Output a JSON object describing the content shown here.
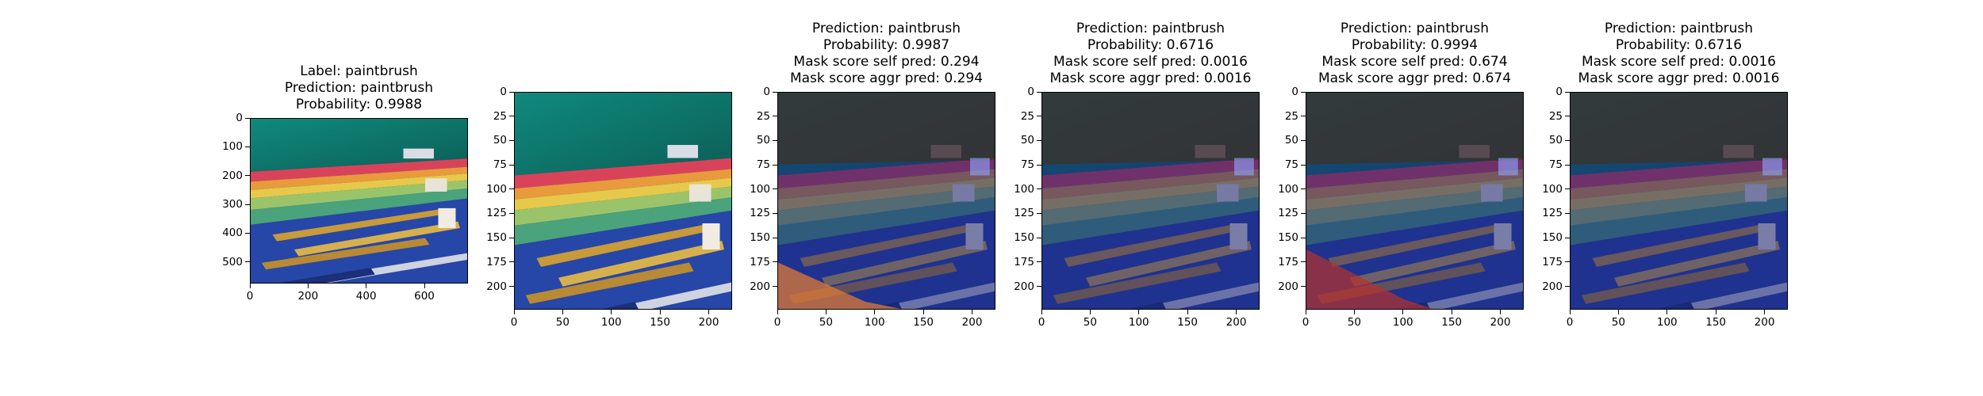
{
  "panels": [
    {
      "title_lines": [
        "Label: paintbrush",
        "Prediction: paintbrush",
        "Probability: 0.9988"
      ],
      "kind": "original",
      "x_ticks": [
        "0",
        "200",
        "400",
        "600"
      ],
      "y_ticks": [
        "0",
        "100",
        "200",
        "300",
        "400",
        "500"
      ],
      "x_range": [
        0,
        750
      ],
      "y_range": [
        0,
        575
      ]
    },
    {
      "title_lines": [],
      "kind": "resized",
      "x_ticks": [
        "0",
        "50",
        "100",
        "150",
        "200"
      ],
      "y_ticks": [
        "0",
        "25",
        "50",
        "75",
        "100",
        "125",
        "150",
        "175",
        "200"
      ],
      "x_range": [
        0,
        224
      ],
      "y_range": [
        0,
        224
      ]
    },
    {
      "title_lines": [
        "Prediction: paintbrush",
        "Probability: 0.9987",
        "Mask score self pred: 0.294",
        "Mask score aggr pred: 0.294"
      ],
      "kind": "mask",
      "x_ticks": [
        "0",
        "50",
        "100",
        "150",
        "200"
      ],
      "y_ticks": [
        "0",
        "25",
        "50",
        "75",
        "100",
        "125",
        "150",
        "175",
        "200"
      ],
      "x_range": [
        0,
        224
      ],
      "y_range": [
        0,
        224
      ]
    },
    {
      "title_lines": [
        "Prediction: paintbrush",
        "Probability: 0.6716",
        "Mask score self pred: 0.0016",
        "Mask score aggr pred: 0.0016"
      ],
      "kind": "mask",
      "x_ticks": [
        "0",
        "50",
        "100",
        "150",
        "200"
      ],
      "y_ticks": [
        "0",
        "25",
        "50",
        "75",
        "100",
        "125",
        "150",
        "175",
        "200"
      ],
      "x_range": [
        0,
        224
      ],
      "y_range": [
        0,
        224
      ]
    },
    {
      "title_lines": [
        "Prediction: paintbrush",
        "Probability: 0.9994",
        "Mask score self pred: 0.674",
        "Mask score aggr pred: 0.674"
      ],
      "kind": "mask",
      "x_ticks": [
        "0",
        "50",
        "100",
        "150",
        "200"
      ],
      "y_ticks": [
        "0",
        "25",
        "50",
        "75",
        "100",
        "125",
        "150",
        "175",
        "200"
      ],
      "x_range": [
        0,
        224
      ],
      "y_range": [
        0,
        224
      ]
    },
    {
      "title_lines": [
        "Prediction: paintbrush",
        "Probability: 0.6716",
        "Mask score self pred: 0.0016",
        "Mask score aggr pred: 0.0016"
      ],
      "kind": "mask",
      "x_ticks": [
        "0",
        "50",
        "100",
        "150",
        "200"
      ],
      "y_ticks": [
        "0",
        "25",
        "50",
        "75",
        "100",
        "125",
        "150",
        "175",
        "200"
      ],
      "x_range": [
        0,
        224
      ],
      "y_range": [
        0,
        224
      ]
    }
  ]
}
